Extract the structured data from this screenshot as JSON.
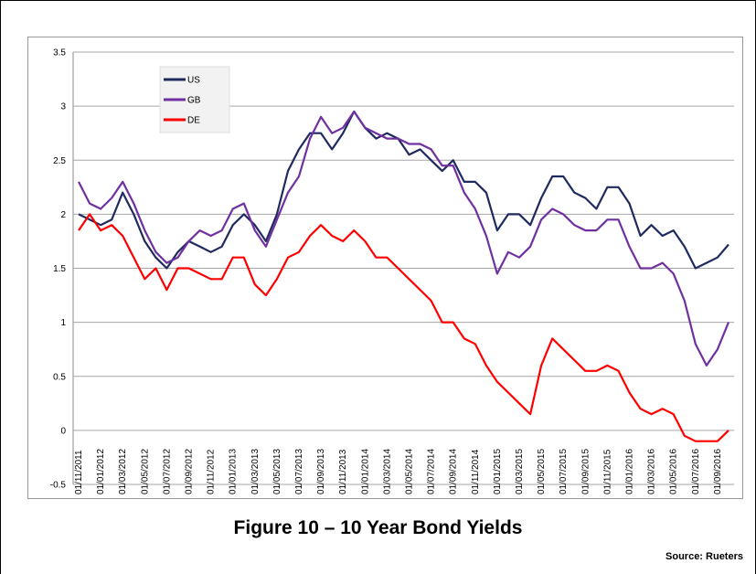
{
  "chart_data": {
    "type": "line",
    "categories": [
      "01/11/2011",
      null,
      "01/01/2012",
      null,
      "01/03/2012",
      null,
      "01/05/2012",
      null,
      "01/07/2012",
      null,
      "01/09/2012",
      null,
      "01/11/2012",
      null,
      "01/01/2013",
      null,
      "01/03/2013",
      null,
      "01/05/2013",
      null,
      "01/07/2013",
      null,
      "01/09/2013",
      null,
      "01/11/2013",
      null,
      "01/01/2014",
      null,
      "01/03/2014",
      null,
      "01/05/2014",
      null,
      "01/07/2014",
      null,
      "01/09/2014",
      null,
      "01/11/2014",
      null,
      "01/01/2015",
      null,
      "01/03/2015",
      null,
      "01/05/2015",
      null,
      "01/07/2015",
      null,
      "01/09/2015",
      null,
      "01/11/2015",
      null,
      "01/01/2016",
      null,
      "01/03/2016",
      null,
      "01/05/2016",
      null,
      "01/07/2016",
      null,
      "01/09/2016",
      null
    ],
    "series": [
      {
        "name": "US",
        "color": "#1f2a5e",
        "values": [
          2.0,
          1.95,
          1.9,
          1.95,
          2.2,
          2.0,
          1.75,
          1.6,
          1.5,
          1.65,
          1.75,
          1.7,
          1.65,
          1.7,
          1.9,
          2.0,
          1.9,
          1.75,
          2.0,
          2.4,
          2.6,
          2.75,
          2.75,
          2.6,
          2.75,
          2.95,
          2.8,
          2.7,
          2.75,
          2.7,
          2.55,
          2.6,
          2.5,
          2.4,
          2.5,
          2.3,
          2.3,
          2.2,
          1.85,
          2.0,
          2.0,
          1.9,
          2.15,
          2.35,
          2.35,
          2.2,
          2.15,
          2.05,
          2.25,
          2.25,
          2.1,
          1.8,
          1.9,
          1.8,
          1.85,
          1.7,
          1.5,
          1.55,
          1.6,
          1.72
        ]
      },
      {
        "name": "GB",
        "color": "#7030a0",
        "values": [
          2.3,
          2.1,
          2.05,
          2.15,
          2.3,
          2.1,
          1.85,
          1.65,
          1.55,
          1.6,
          1.75,
          1.85,
          1.8,
          1.85,
          2.05,
          2.1,
          1.85,
          1.7,
          1.95,
          2.2,
          2.35,
          2.7,
          2.9,
          2.75,
          2.8,
          2.95,
          2.8,
          2.75,
          2.7,
          2.7,
          2.65,
          2.65,
          2.6,
          2.45,
          2.45,
          2.2,
          2.05,
          1.8,
          1.45,
          1.65,
          1.6,
          1.7,
          1.95,
          2.05,
          2.0,
          1.9,
          1.85,
          1.85,
          1.95,
          1.95,
          1.7,
          1.5,
          1.5,
          1.55,
          1.45,
          1.2,
          0.8,
          0.6,
          0.75,
          1.0
        ]
      },
      {
        "name": "DE",
        "color": "#ff0000",
        "values": [
          1.85,
          2.0,
          1.85,
          1.9,
          1.8,
          1.6,
          1.4,
          1.5,
          1.3,
          1.5,
          1.5,
          1.45,
          1.4,
          1.4,
          1.6,
          1.6,
          1.35,
          1.25,
          1.4,
          1.6,
          1.65,
          1.8,
          1.9,
          1.8,
          1.75,
          1.85,
          1.75,
          1.6,
          1.6,
          1.5,
          1.4,
          1.3,
          1.2,
          1.0,
          1.0,
          0.85,
          0.8,
          0.6,
          0.45,
          0.35,
          0.25,
          0.15,
          0.6,
          0.85,
          0.75,
          0.65,
          0.55,
          0.55,
          0.6,
          0.55,
          0.35,
          0.2,
          0.15,
          0.2,
          0.15,
          -0.05,
          -0.1,
          -0.1,
          -0.1,
          0.0
        ]
      }
    ],
    "ylim": [
      -0.5,
      3.5
    ],
    "yticks": [
      -0.5,
      0,
      0.5,
      1,
      1.5,
      2,
      2.5,
      3,
      3.5
    ],
    "grid": true,
    "legend": "upper-left"
  },
  "caption": "Figure 10 – 10 Year Bond Yields",
  "source": "Source: Rueters"
}
